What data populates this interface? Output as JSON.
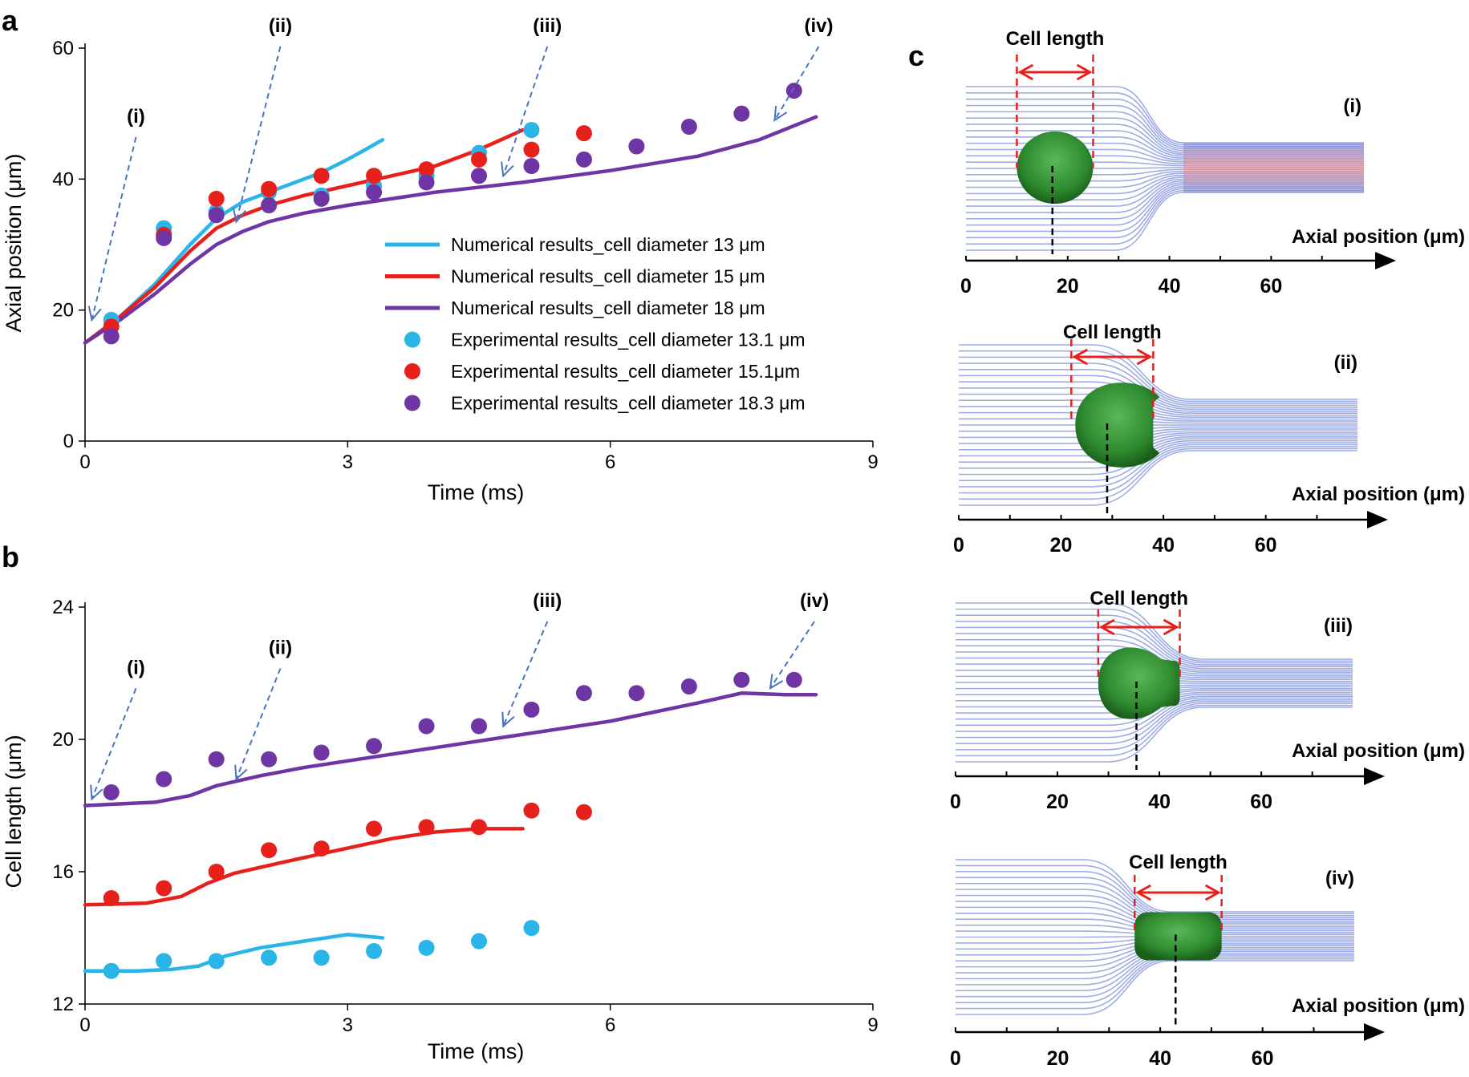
{
  "panel_labels": {
    "a": "a",
    "b": "b",
    "c": "c"
  },
  "chart_data": [
    {
      "panel": "a",
      "type": "line",
      "xlabel": "Time (ms)",
      "ylabel": "Axial position (μm)",
      "xlim": [
        0,
        9
      ],
      "ylim": [
        0,
        60
      ],
      "xticks": [
        "0",
        "3",
        "6",
        "9"
      ],
      "yticks": [
        "0",
        "20",
        "40",
        "60"
      ],
      "legend_position": "center-right",
      "series": [
        {
          "name": "Numerical results_cell diameter 13 μm",
          "kind": "line",
          "color": "#29b5e8",
          "x": [
            0,
            0.4,
            0.8,
            1.2,
            1.5,
            1.8,
            2.1,
            2.4,
            2.7,
            3.0,
            3.2,
            3.4
          ],
          "y": [
            15,
            19,
            24,
            30,
            34,
            36.5,
            38,
            39.5,
            41,
            43,
            44.5,
            46
          ]
        },
        {
          "name": "Numerical results_cell diameter 15 μm",
          "kind": "line",
          "color": "#e8201b",
          "x": [
            0,
            0.4,
            0.8,
            1.2,
            1.5,
            1.8,
            2.1,
            2.5,
            3.0,
            3.5,
            4.0,
            4.5,
            5.0
          ],
          "y": [
            15,
            19,
            23.5,
            29,
            32.5,
            34.5,
            36,
            37.5,
            39,
            40.5,
            42,
            44.5,
            47.5
          ]
        },
        {
          "name": "Numerical results_cell diameter 18 μm",
          "kind": "line",
          "color": "#6f35a5",
          "x": [
            0,
            0.4,
            0.8,
            1.2,
            1.5,
            1.8,
            2.1,
            2.5,
            3.0,
            4.0,
            5.0,
            6.0,
            7.0,
            7.7,
            8.35
          ],
          "y": [
            15,
            18.5,
            22.5,
            27,
            30,
            32,
            33.5,
            34.8,
            36,
            38,
            39.5,
            41.3,
            43.5,
            46,
            49.5
          ]
        },
        {
          "name": "Experimental results_cell diameter 13.1 μm",
          "kind": "scatter",
          "color": "#29b5e8",
          "x": [
            0.3,
            0.9,
            1.5,
            2.1,
            2.7,
            3.3,
            3.9,
            4.5,
            5.1
          ],
          "y": [
            18.5,
            32.5,
            35,
            38,
            37.5,
            39,
            40.5,
            44,
            47.5
          ]
        },
        {
          "name": "Experimental results_cell diameter 15.1μm",
          "kind": "scatter",
          "color": "#e8201b",
          "x": [
            0.3,
            0.9,
            1.5,
            2.1,
            2.7,
            3.3,
            3.9,
            4.5,
            5.1,
            5.7
          ],
          "y": [
            17.5,
            31.5,
            37,
            38.5,
            40.5,
            40.5,
            41.5,
            43,
            44.5,
            47
          ]
        },
        {
          "name": "Experimental results_cell diameter 18.3 μm",
          "kind": "scatter",
          "color": "#6f35a5",
          "x": [
            0.3,
            0.9,
            1.5,
            2.1,
            2.7,
            3.3,
            3.9,
            4.5,
            5.1,
            5.7,
            6.3,
            6.9,
            7.5,
            8.1
          ],
          "y": [
            16,
            31,
            34.5,
            36,
            37,
            38,
            39.5,
            40.5,
            42,
            43,
            45,
            48,
            50,
            53.5
          ]
        }
      ],
      "annotations": [
        {
          "label": "(i)",
          "x": 0.05,
          "y": 18
        },
        {
          "label": "(ii)",
          "x": 1.7,
          "y": 33
        },
        {
          "label": "(iii)",
          "x": 4.75,
          "y": 40
        },
        {
          "label": "(iv)",
          "x": 7.85,
          "y": 48.5
        }
      ]
    },
    {
      "panel": "b",
      "type": "line",
      "xlabel": "Time (ms)",
      "ylabel": "Cell length (μm)",
      "xlim": [
        0,
        9
      ],
      "ylim": [
        12,
        24
      ],
      "xticks": [
        "0",
        "3",
        "6",
        "9"
      ],
      "yticks": [
        "12",
        "16",
        "20",
        "24"
      ],
      "series": [
        {
          "name": "Numerical results_cell diameter 13 μm",
          "kind": "line",
          "color": "#29b5e8",
          "x": [
            0,
            0.6,
            1.0,
            1.3,
            1.6,
            2.0,
            2.5,
            3.0,
            3.4
          ],
          "y": [
            13.0,
            13.0,
            13.05,
            13.15,
            13.45,
            13.7,
            13.9,
            14.1,
            14.0
          ]
        },
        {
          "name": "Numerical results_cell diameter 15 μm",
          "kind": "line",
          "color": "#e8201b",
          "x": [
            0,
            0.7,
            1.1,
            1.4,
            1.7,
            2.2,
            2.8,
            3.5,
            4.0,
            4.5,
            5.0
          ],
          "y": [
            15.0,
            15.05,
            15.25,
            15.65,
            15.95,
            16.25,
            16.6,
            17.0,
            17.2,
            17.3,
            17.3
          ]
        },
        {
          "name": "Numerical results_cell diameter 18 μm",
          "kind": "line",
          "color": "#6f35a5",
          "x": [
            0,
            0.8,
            1.2,
            1.5,
            2.0,
            2.5,
            3.0,
            4.0,
            5.0,
            6.0,
            7.0,
            7.5,
            8.0,
            8.35
          ],
          "y": [
            18.0,
            18.1,
            18.3,
            18.6,
            18.9,
            19.15,
            19.35,
            19.75,
            20.15,
            20.55,
            21.1,
            21.4,
            21.35,
            21.35
          ]
        },
        {
          "name": "Experimental results_cell diameter 13.1 μm",
          "kind": "scatter",
          "color": "#29b5e8",
          "x": [
            0.3,
            0.9,
            1.5,
            2.1,
            2.7,
            3.3,
            3.9,
            4.5,
            5.1
          ],
          "y": [
            13.0,
            13.3,
            13.3,
            13.4,
            13.4,
            13.6,
            13.7,
            13.9,
            14.3
          ]
        },
        {
          "name": "Experimental results_cell diameter 15.1μm",
          "kind": "scatter",
          "color": "#e8201b",
          "x": [
            0.3,
            0.9,
            1.5,
            2.1,
            2.7,
            3.3,
            3.9,
            4.5,
            5.1,
            5.7
          ],
          "y": [
            15.2,
            15.5,
            16.0,
            16.65,
            16.7,
            17.3,
            17.35,
            17.35,
            17.85,
            17.8
          ]
        },
        {
          "name": "Experimental results_cell diameter 18.3 μm",
          "kind": "scatter",
          "color": "#6f35a5",
          "x": [
            0.3,
            0.9,
            1.5,
            2.1,
            2.7,
            3.3,
            3.9,
            4.5,
            5.1,
            5.7,
            6.3,
            6.9,
            7.5,
            8.1
          ],
          "y": [
            18.4,
            18.8,
            19.4,
            19.4,
            19.6,
            19.8,
            20.4,
            20.4,
            20.9,
            21.4,
            21.4,
            21.6,
            21.8,
            21.8
          ]
        }
      ],
      "annotations": [
        {
          "label": "(i)",
          "x": 0.05,
          "y": 18.1
        },
        {
          "label": "(ii)",
          "x": 1.7,
          "y": 18.7
        },
        {
          "label": "(iii)",
          "x": 4.75,
          "y": 20.3
        },
        {
          "label": "(iv)",
          "x": 7.8,
          "y": 21.45
        }
      ]
    }
  ],
  "panel_c": {
    "cell_length_label": "Cell length",
    "axis_label": "Axial position (μm)",
    "xticks": [
      "0",
      "20",
      "40",
      "60"
    ],
    "colors": {
      "streamline": "#7d8fdf",
      "cell": "#2e8a2e",
      "marker": "#e8201b"
    },
    "snapshots": [
      {
        "roman": "(i)",
        "cell_start": 10,
        "cell_end": 25,
        "cell_center": 17
      },
      {
        "roman": "(ii)",
        "cell_start": 22,
        "cell_end": 38,
        "cell_center": 29
      },
      {
        "roman": "(iii)",
        "cell_start": 28,
        "cell_end": 44,
        "cell_center": 35.5
      },
      {
        "roman": "(iv)",
        "cell_start": 35,
        "cell_end": 52,
        "cell_center": 43
      }
    ]
  }
}
